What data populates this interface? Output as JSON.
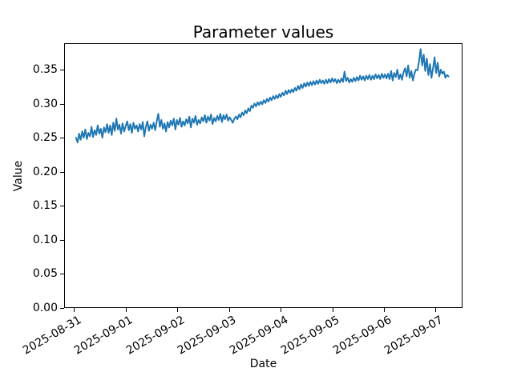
{
  "figure": {
    "background": "#ffffff"
  },
  "chart_data": {
    "type": "line",
    "title": "Parameter values",
    "xlabel": "Date",
    "ylabel": "Value",
    "series_name": "parameter-value-series",
    "series_color": "#1f77b4",
    "grid": false,
    "legend": "none",
    "x_tick_labels": [
      "2025-08-31",
      "2025-09-01",
      "2025-09-02",
      "2025-09-03",
      "2025-09-04",
      "2025-09-05",
      "2025-09-06",
      "2025-09-07"
    ],
    "x_tick_day_offsets": [
      0,
      1,
      2,
      3,
      4,
      5,
      6,
      7
    ],
    "y_tick_labels": [
      "0.00",
      "0.05",
      "0.10",
      "0.15",
      "0.20",
      "0.25",
      "0.30",
      "0.35"
    ],
    "y_tick_values": [
      0.0,
      0.05,
      0.1,
      0.15,
      0.2,
      0.25,
      0.3,
      0.35
    ],
    "xlim_days": [
      -0.19,
      7.52
    ],
    "ylim": [
      0.0,
      0.3887
    ],
    "x_start_day": 0.04,
    "x_end_day": 7.25,
    "values": [
      0.25,
      0.243,
      0.256,
      0.247,
      0.259,
      0.25,
      0.262,
      0.248,
      0.257,
      0.252,
      0.266,
      0.251,
      0.261,
      0.254,
      0.268,
      0.256,
      0.263,
      0.25,
      0.265,
      0.258,
      0.27,
      0.257,
      0.268,
      0.254,
      0.272,
      0.26,
      0.278,
      0.262,
      0.269,
      0.256,
      0.271,
      0.259,
      0.267,
      0.274,
      0.261,
      0.27,
      0.257,
      0.272,
      0.263,
      0.268,
      0.259,
      0.27,
      0.262,
      0.273,
      0.252,
      0.266,
      0.274,
      0.26,
      0.269,
      0.263,
      0.272,
      0.261,
      0.274,
      0.285,
      0.266,
      0.276,
      0.263,
      0.271,
      0.259,
      0.273,
      0.265,
      0.275,
      0.268,
      0.278,
      0.262,
      0.276,
      0.269,
      0.279,
      0.266,
      0.274,
      0.268,
      0.277,
      0.271,
      0.281,
      0.265,
      0.278,
      0.272,
      0.282,
      0.269,
      0.276,
      0.271,
      0.28,
      0.274,
      0.283,
      0.272,
      0.281,
      0.275,
      0.284,
      0.27,
      0.279,
      0.274,
      0.282,
      0.276,
      0.285,
      0.273,
      0.283,
      0.277,
      0.284,
      0.275,
      0.28,
      0.276,
      0.272,
      0.278,
      0.281,
      0.277,
      0.284,
      0.28,
      0.287,
      0.283,
      0.29,
      0.286,
      0.293,
      0.289,
      0.297,
      0.294,
      0.3,
      0.296,
      0.302,
      0.298,
      0.303,
      0.299,
      0.305,
      0.301,
      0.307,
      0.303,
      0.309,
      0.305,
      0.311,
      0.307,
      0.312,
      0.308,
      0.314,
      0.31,
      0.316,
      0.312,
      0.319,
      0.314,
      0.32,
      0.316,
      0.321,
      0.317,
      0.323,
      0.319,
      0.326,
      0.321,
      0.328,
      0.323,
      0.33,
      0.325,
      0.331,
      0.326,
      0.332,
      0.327,
      0.333,
      0.328,
      0.334,
      0.329,
      0.335,
      0.33,
      0.334,
      0.329,
      0.335,
      0.33,
      0.336,
      0.331,
      0.337,
      0.332,
      0.336,
      0.33,
      0.335,
      0.331,
      0.337,
      0.332,
      0.347,
      0.333,
      0.338,
      0.331,
      0.336,
      0.332,
      0.338,
      0.333,
      0.339,
      0.334,
      0.341,
      0.335,
      0.34,
      0.334,
      0.341,
      0.336,
      0.342,
      0.335,
      0.341,
      0.336,
      0.343,
      0.337,
      0.342,
      0.336,
      0.344,
      0.338,
      0.343,
      0.337,
      0.344,
      0.336,
      0.348,
      0.334,
      0.345,
      0.339,
      0.35,
      0.336,
      0.343,
      0.335,
      0.346,
      0.352,
      0.34,
      0.356,
      0.338,
      0.348,
      0.334,
      0.344,
      0.35,
      0.349,
      0.362,
      0.38,
      0.356,
      0.372,
      0.348,
      0.366,
      0.342,
      0.358,
      0.338,
      0.352,
      0.368,
      0.345,
      0.36,
      0.34,
      0.35,
      0.344,
      0.347,
      0.338,
      0.342,
      0.34
    ]
  }
}
